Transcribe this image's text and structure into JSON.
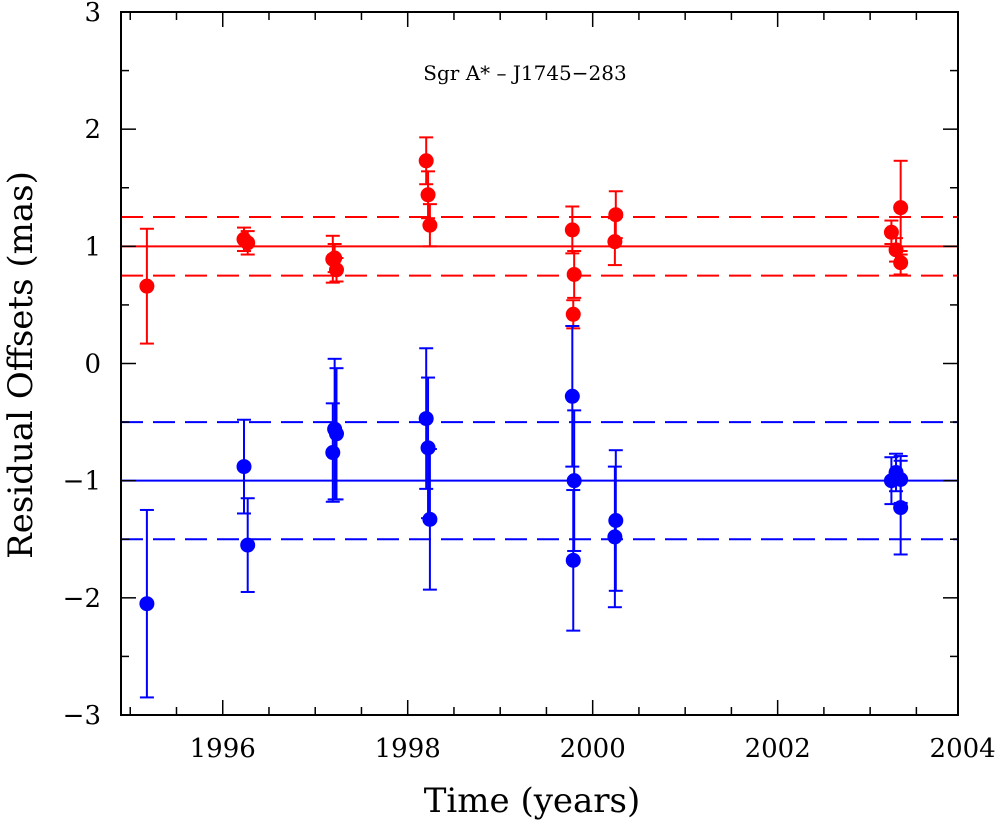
{
  "chart_data": {
    "type": "scatter",
    "title": "Sgr A* – J1745−283",
    "xlabel": "Time (years)",
    "ylabel": "Residual Offsets (mas)",
    "xlim": [
      1994.9,
      2003.95
    ],
    "ylim": [
      -3,
      3
    ],
    "x_ticks": [
      {
        "value": 1996,
        "label": "1996"
      },
      {
        "value": 1998,
        "label": "1998"
      },
      {
        "value": 2000,
        "label": "2000"
      },
      {
        "value": 2002,
        "label": "2002"
      },
      {
        "value": 2004,
        "label": "2004"
      }
    ],
    "y_ticks": [
      {
        "value": -3,
        "label": "−3"
      },
      {
        "value": -2,
        "label": "−2"
      },
      {
        "value": -1,
        "label": "−1"
      },
      {
        "value": 0,
        "label": "0"
      },
      {
        "value": 1,
        "label": "1"
      },
      {
        "value": 2,
        "label": "2"
      },
      {
        "value": 3,
        "label": "3"
      }
    ],
    "series": [
      {
        "name": "upper (red)",
        "color": "#ff0000",
        "mean": 1.0,
        "band": [
          0.75,
          1.25
        ],
        "points": [
          {
            "x": 1995.18,
            "y": 0.66,
            "err": 0.49
          },
          {
            "x": 1996.23,
            "y": 1.06,
            "err": 0.1
          },
          {
            "x": 1996.27,
            "y": 1.03,
            "err": 0.1
          },
          {
            "x": 1997.19,
            "y": 0.89,
            "err": 0.2
          },
          {
            "x": 1997.21,
            "y": 0.9,
            "err": 0.12
          },
          {
            "x": 1997.23,
            "y": 0.8,
            "err": 0.1
          },
          {
            "x": 1998.2,
            "y": 1.73,
            "err": 0.2
          },
          {
            "x": 1998.22,
            "y": 1.44,
            "err": 0.2
          },
          {
            "x": 1998.24,
            "y": 1.18,
            "err": 0.18
          },
          {
            "x": 1999.78,
            "y": 1.14,
            "err": 0.2
          },
          {
            "x": 1999.8,
            "y": 0.76,
            "err": 0.2
          },
          {
            "x": 1999.79,
            "y": 0.42,
            "err": 0.12
          },
          {
            "x": 2000.25,
            "y": 1.27,
            "err": 0.2
          },
          {
            "x": 2000.24,
            "y": 1.04,
            "err": 0.2
          },
          {
            "x": 2003.23,
            "y": 1.12,
            "err": 0.1
          },
          {
            "x": 2003.28,
            "y": 0.97,
            "err": 0.1
          },
          {
            "x": 2003.33,
            "y": 1.33,
            "err": 0.4
          },
          {
            "x": 2003.33,
            "y": 0.86,
            "err": 0.1
          }
        ]
      },
      {
        "name": "lower (blue)",
        "color": "#0000ff",
        "mean": -1.0,
        "band": [
          -1.5,
          -0.5
        ],
        "points": [
          {
            "x": 1995.18,
            "y": -2.05,
            "err": 0.8
          },
          {
            "x": 1996.23,
            "y": -0.88,
            "err": 0.4
          },
          {
            "x": 1996.27,
            "y": -1.55,
            "err": 0.4
          },
          {
            "x": 1997.19,
            "y": -0.76,
            "err": 0.42
          },
          {
            "x": 1997.21,
            "y": -0.56,
            "err": 0.6
          },
          {
            "x": 1997.23,
            "y": -0.6,
            "err": 0.56
          },
          {
            "x": 1998.2,
            "y": -0.47,
            "err": 0.6
          },
          {
            "x": 1998.22,
            "y": -0.72,
            "err": 0.6
          },
          {
            "x": 1998.24,
            "y": -1.33,
            "err": 0.6
          },
          {
            "x": 1999.78,
            "y": -0.28,
            "err": 0.6
          },
          {
            "x": 1999.8,
            "y": -1.0,
            "err": 0.6
          },
          {
            "x": 1999.79,
            "y": -1.68,
            "err": 0.6
          },
          {
            "x": 2000.25,
            "y": -1.34,
            "err": 0.6
          },
          {
            "x": 2000.24,
            "y": -1.48,
            "err": 0.6
          },
          {
            "x": 2003.23,
            "y": -1.0,
            "err": 0.2
          },
          {
            "x": 2003.28,
            "y": -0.93,
            "err": 0.16
          },
          {
            "x": 2003.33,
            "y": -0.99,
            "err": 0.2
          },
          {
            "x": 2003.33,
            "y": -1.23,
            "err": 0.4
          }
        ]
      }
    ]
  }
}
